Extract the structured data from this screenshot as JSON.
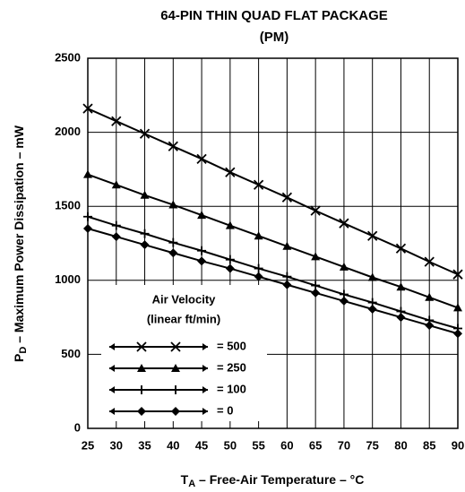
{
  "chart_data": {
    "type": "line",
    "title": "64-PIN THIN QUAD FLAT PACKAGE",
    "subtitle": "(PM)",
    "xlabel": {
      "symbol": "T",
      "subscript": "A",
      "text": " – Free-Air Temperature – °C"
    },
    "ylabel": {
      "symbol": "P",
      "subscript": "D",
      "text": " – Maximum Power Dissipation – mW"
    },
    "legend_title": [
      "Air Velocity",
      "(linear ft/min)"
    ],
    "x": [
      25,
      30,
      35,
      40,
      45,
      50,
      55,
      60,
      65,
      70,
      75,
      80,
      85,
      90
    ],
    "series": [
      {
        "name": "= 500",
        "color": "#000000",
        "marker": "x",
        "values": [
          2160,
          2075,
          1990,
          1905,
          1820,
          1730,
          1645,
          1560,
          1470,
          1385,
          1300,
          1215,
          1125,
          1040
        ]
      },
      {
        "name": "= 250",
        "color": "#000000",
        "marker": "triangle",
        "values": [
          1715,
          1645,
          1575,
          1510,
          1440,
          1370,
          1300,
          1230,
          1160,
          1090,
          1020,
          955,
          885,
          815
        ]
      },
      {
        "name": "= 100",
        "color": "#000000",
        "marker": "plus",
        "values": [
          1430,
          1370,
          1315,
          1255,
          1200,
          1140,
          1080,
          1025,
          965,
          905,
          850,
          790,
          730,
          675
        ]
      },
      {
        "name": "= 0",
        "color": "#000000",
        "marker": "diamond",
        "values": [
          1350,
          1295,
          1240,
          1185,
          1130,
          1080,
          1025,
          970,
          915,
          860,
          805,
          750,
          695,
          640
        ]
      }
    ],
    "xlim": [
      25,
      90
    ],
    "xticks": [
      25,
      30,
      35,
      40,
      45,
      50,
      55,
      60,
      65,
      70,
      75,
      80,
      85,
      90
    ],
    "ylim": [
      0,
      2500
    ],
    "yticks": [
      0,
      500,
      1000,
      1500,
      2000,
      2500
    ],
    "grid": true
  }
}
